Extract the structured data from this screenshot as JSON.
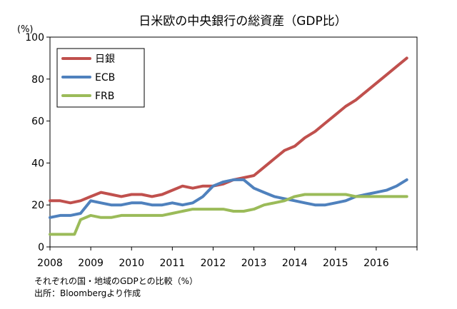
{
  "chart_data": {
    "type": "line",
    "title": "日米欧の中央銀行の総資産（GDP比）",
    "unit": "(%)",
    "xlabel": "",
    "ylabel": "(%)",
    "xlim": [
      2008.0,
      2017.0
    ],
    "ylim": [
      0,
      100
    ],
    "yticks": [
      0,
      20,
      40,
      60,
      80,
      100
    ],
    "xticks": [
      "2008",
      "2009",
      "2010",
      "2011",
      "2012",
      "2013",
      "2014",
      "2015",
      "2016"
    ],
    "grid": false,
    "legend": "top-left",
    "series": [
      {
        "name": "日銀",
        "color": "#c0504d",
        "x": [
          2008.0,
          2008.25,
          2008.5,
          2008.75,
          2009.0,
          2009.25,
          2009.5,
          2009.75,
          2010.0,
          2010.25,
          2010.5,
          2010.75,
          2011.0,
          2011.25,
          2011.5,
          2011.75,
          2012.0,
          2012.25,
          2012.5,
          2012.75,
          2013.0,
          2013.25,
          2013.5,
          2013.75,
          2014.0,
          2014.25,
          2014.5,
          2014.75,
          2015.0,
          2015.25,
          2015.5,
          2015.75,
          2016.0,
          2016.25,
          2016.5,
          2016.75
        ],
        "values": [
          22,
          22,
          21,
          22,
          24,
          26,
          25,
          24,
          25,
          25,
          24,
          25,
          27,
          29,
          28,
          29,
          29,
          30,
          32,
          33,
          34,
          38,
          42,
          46,
          48,
          52,
          55,
          59,
          63,
          67,
          70,
          74,
          78,
          82,
          86,
          90
        ]
      },
      {
        "name": "ECB",
        "color": "#4f81bd",
        "x": [
          2008.0,
          2008.25,
          2008.5,
          2008.75,
          2009.0,
          2009.25,
          2009.5,
          2009.75,
          2010.0,
          2010.25,
          2010.5,
          2010.75,
          2011.0,
          2011.25,
          2011.5,
          2011.75,
          2012.0,
          2012.25,
          2012.5,
          2012.75,
          2013.0,
          2013.25,
          2013.5,
          2013.75,
          2014.0,
          2014.25,
          2014.5,
          2014.75,
          2015.0,
          2015.25,
          2015.5,
          2015.75,
          2016.0,
          2016.25,
          2016.5,
          2016.75
        ],
        "values": [
          14,
          15,
          15,
          16,
          22,
          21,
          20,
          20,
          21,
          21,
          20,
          20,
          21,
          20,
          21,
          24,
          29,
          31,
          32,
          32,
          28,
          26,
          24,
          23,
          22,
          21,
          20,
          20,
          21,
          22,
          24,
          25,
          26,
          27,
          29,
          32
        ]
      },
      {
        "name": "FRB",
        "color": "#9bbb59",
        "x": [
          2008.0,
          2008.25,
          2008.5,
          2008.6,
          2008.75,
          2009.0,
          2009.25,
          2009.5,
          2009.75,
          2010.0,
          2010.25,
          2010.5,
          2010.75,
          2011.0,
          2011.25,
          2011.5,
          2011.75,
          2012.0,
          2012.25,
          2012.5,
          2012.75,
          2013.0,
          2013.25,
          2013.5,
          2013.75,
          2014.0,
          2014.25,
          2014.5,
          2014.75,
          2015.0,
          2015.25,
          2015.5,
          2015.75,
          2016.0,
          2016.25,
          2016.5,
          2016.75
        ],
        "values": [
          6,
          6,
          6,
          6,
          13,
          15,
          14,
          14,
          15,
          15,
          15,
          15,
          15,
          16,
          17,
          18,
          18,
          18,
          18,
          17,
          17,
          18,
          20,
          21,
          22,
          24,
          25,
          25,
          25,
          25,
          25,
          24,
          24,
          24,
          24,
          24,
          24
        ]
      }
    ]
  },
  "footnotes": {
    "line1": "それぞれの国・地域のGDPとの比較（%）",
    "line2": "出所：Bloombergより作成"
  }
}
